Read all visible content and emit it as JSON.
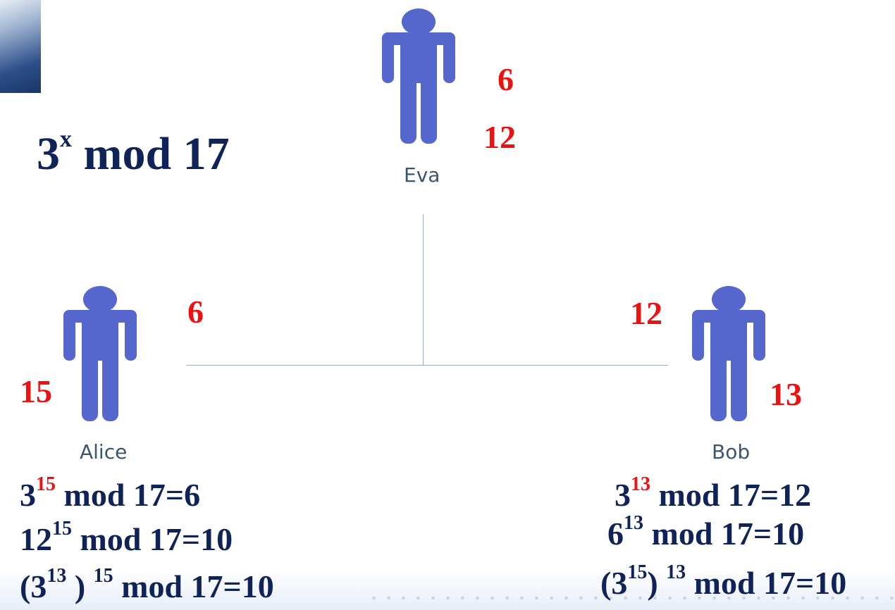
{
  "title": {
    "base": "3",
    "exp": "x",
    "rest": "mod 17"
  },
  "people": {
    "eva": {
      "name": "Eva"
    },
    "alice": {
      "name": "Alice"
    },
    "bob": {
      "name": "Bob"
    }
  },
  "numbers": {
    "eva_top": "6",
    "eva_bottom": "12",
    "alice_sent": "6",
    "alice_secret": "15",
    "bob_sent": "12",
    "bob_secret": "13"
  },
  "alice_formulas": [
    {
      "pre": "3",
      "exp": "15",
      "post": " mod 17=6"
    },
    {
      "pre": "12",
      "exp": "15",
      "post": " mod 17=10"
    },
    {
      "pre": "(3",
      "exp": "13",
      "mid": " ) ",
      "exp2": "15",
      "post": " mod 17=10"
    }
  ],
  "bob_formulas": [
    {
      "pre": "3",
      "exp": "13",
      "post": " mod 17=12"
    },
    {
      "pre": "6",
      "exp": "13",
      "post": " mod 17=10"
    },
    {
      "pre": "(3",
      "exp": "15",
      "mid": ") ",
      "exp2": "13",
      "post": " mod 17=10"
    }
  ],
  "colors": {
    "figure": "#5566cc",
    "navy_text": "#0f2358",
    "red_text": "#ee1111",
    "connector": "#9db0c3"
  }
}
